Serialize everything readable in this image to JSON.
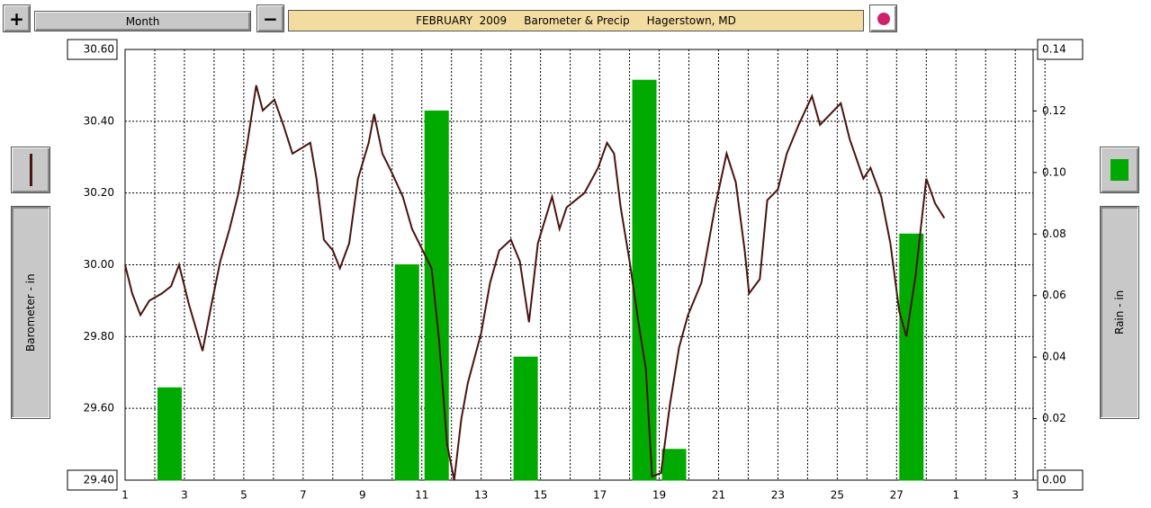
{
  "toolbar": {
    "period": "Month"
  },
  "chart_data": {
    "type": "bar-line",
    "title": "FEBRUARY  2009     Barometer & Precip     Hagerstown, MD",
    "y_label": "Barometer - in",
    "y2_label": "Rain - in",
    "xlim": [
      1,
      31.6
    ],
    "xticks": [
      1,
      3,
      5,
      7,
      9,
      11,
      13,
      15,
      17,
      19,
      21,
      23,
      25,
      27,
      {
        "value": 29,
        "label": "1"
      },
      {
        "value": 31,
        "label": "3"
      }
    ],
    "ylim": [
      29.4,
      30.6
    ],
    "yticks": [
      {
        "value": 29.4,
        "label": "29.40"
      },
      {
        "value": 29.6,
        "label": "29.60"
      },
      {
        "value": 29.8,
        "label": "29.80"
      },
      {
        "value": 30.0,
        "label": "30.00"
      },
      {
        "value": 30.2,
        "label": "30.20"
      },
      {
        "value": 30.4,
        "label": "30.40"
      },
      {
        "value": 30.6,
        "label": "30.60"
      }
    ],
    "y2lim": [
      0,
      0.14
    ],
    "y2ticks": [
      {
        "value": 0,
        "label": "0.00"
      },
      {
        "value": 0.02,
        "label": "0.02"
      },
      {
        "value": 0.04,
        "label": "0.04"
      },
      {
        "value": 0.06,
        "label": "0.06"
      },
      {
        "value": 0.08,
        "label": "0.08"
      },
      {
        "value": 0.1,
        "label": "0.10"
      },
      {
        "value": 0.12,
        "label": "0.12"
      },
      {
        "value": 0.14,
        "label": "0.14"
      }
    ],
    "grid": true,
    "series": [
      {
        "name": "Barometer",
        "type": "line",
        "color": "#4a1410",
        "x": [
          1.0,
          1.24,
          1.52,
          1.82,
          2.24,
          2.55,
          2.82,
          3.15,
          3.61,
          3.91,
          4.21,
          4.52,
          4.82,
          5.12,
          5.42,
          5.64,
          6.03,
          6.33,
          6.64,
          7.24,
          7.45,
          7.7,
          8.0,
          8.24,
          8.55,
          8.85,
          9.21,
          9.39,
          9.67,
          9.97,
          10.36,
          10.67,
          11.03,
          11.33,
          11.58,
          11.85,
          12.09,
          12.33,
          12.55,
          13.0,
          13.3,
          13.61,
          14.0,
          14.3,
          14.61,
          14.91,
          15.39,
          15.64,
          15.88,
          16.48,
          16.94,
          17.24,
          17.48,
          17.7,
          18.0,
          18.3,
          18.55,
          18.76,
          19.06,
          19.36,
          19.67,
          19.97,
          20.42,
          20.88,
          21.27,
          21.58,
          21.88,
          22.03,
          22.39,
          22.64,
          23.0,
          23.3,
          23.7,
          24.15,
          24.42,
          25.12,
          25.42,
          25.88,
          26.12,
          26.48,
          26.79,
          27.09,
          27.33,
          27.64,
          28.0,
          28.3,
          28.61
        ],
        "values": [
          30.0,
          29.92,
          29.86,
          29.9,
          29.92,
          29.94,
          30.0,
          29.89,
          29.76,
          29.89,
          30.01,
          30.1,
          30.2,
          30.34,
          30.5,
          30.43,
          30.46,
          30.39,
          30.31,
          30.34,
          30.24,
          30.07,
          30.04,
          29.99,
          30.06,
          30.24,
          30.34,
          30.42,
          30.31,
          30.26,
          30.19,
          30.1,
          30.04,
          29.99,
          29.79,
          29.5,
          29.4,
          29.57,
          29.67,
          29.81,
          29.95,
          30.04,
          30.07,
          30.01,
          29.84,
          30.06,
          30.19,
          30.1,
          30.16,
          30.2,
          30.27,
          30.34,
          30.31,
          30.16,
          30.01,
          29.84,
          29.71,
          29.41,
          29.42,
          29.61,
          29.77,
          29.86,
          29.95,
          30.16,
          30.31,
          30.23,
          30.04,
          29.92,
          29.96,
          30.18,
          30.21,
          30.31,
          30.39,
          30.47,
          30.39,
          30.45,
          30.35,
          30.24,
          30.27,
          30.19,
          30.06,
          29.87,
          29.8,
          29.97,
          30.24,
          30.17,
          30.13
        ]
      },
      {
        "name": "Rain",
        "type": "bar",
        "axis": "y2",
        "color": "#00aa00",
        "x": [
          1,
          2,
          3,
          4,
          5,
          6,
          7,
          8,
          9,
          10,
          11,
          12,
          13,
          14,
          15,
          16,
          17,
          18,
          19,
          20,
          21,
          22,
          23,
          24,
          25,
          26,
          27,
          28
        ],
        "values": [
          0,
          0.03,
          0,
          0,
          0,
          0,
          0,
          0,
          0,
          0.07,
          0.12,
          0,
          0,
          0.04,
          0,
          0,
          0,
          0.13,
          0.01,
          0,
          0,
          0,
          0,
          0,
          0,
          0,
          0.08,
          0
        ]
      }
    ]
  }
}
